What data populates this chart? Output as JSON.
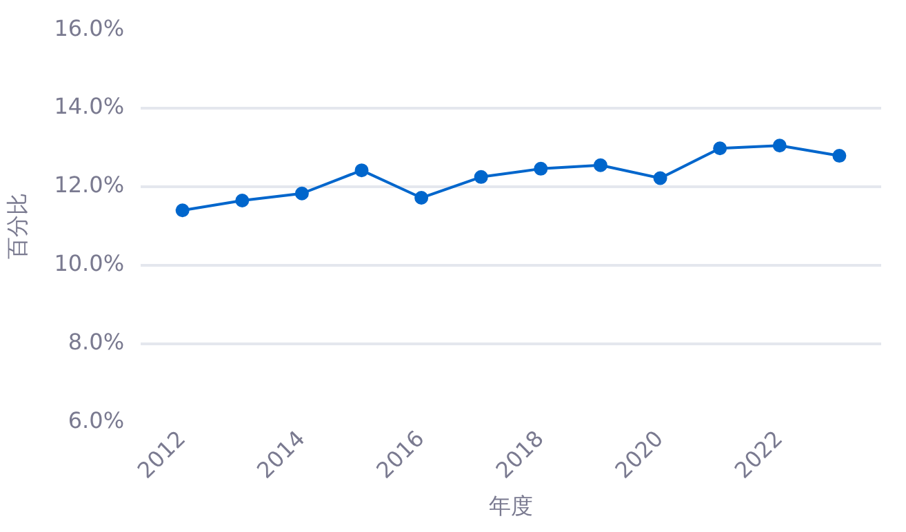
{
  "chart_data": {
    "type": "line",
    "xlabel": "年度",
    "ylabel": "百分比",
    "x": [
      2012,
      2013,
      2014,
      2015,
      2016,
      2017,
      2018,
      2019,
      2020,
      2021,
      2022,
      2023
    ],
    "series": [
      {
        "color": "#0066cc",
        "values": [
          11.4,
          11.65,
          11.83,
          12.42,
          11.72,
          12.25,
          12.46,
          12.55,
          12.22,
          12.98,
          13.05,
          12.79
        ]
      }
    ],
    "xlim": [
      2011.3,
      2023.7
    ],
    "xticks": [
      2012,
      2014,
      2016,
      2018,
      2020,
      2022
    ],
    "ylim": [
      6,
      16
    ],
    "yticks": [
      {
        "value": 6,
        "label": "6.0%"
      },
      {
        "value": 8,
        "label": "8.0%"
      },
      {
        "value": 10,
        "label": "10.0%"
      },
      {
        "value": 12,
        "label": "12.0%"
      },
      {
        "value": 14,
        "label": "14.0%"
      },
      {
        "value": 16,
        "label": "16.0%"
      }
    ],
    "grid": "y",
    "legend": false,
    "marker": "circle",
    "line_style": "solid"
  }
}
